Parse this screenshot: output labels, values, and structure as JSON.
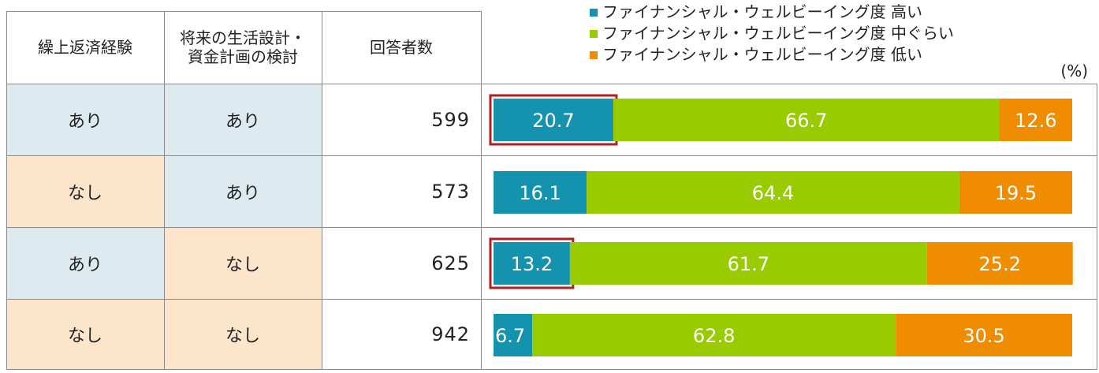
{
  "table": {
    "headers": {
      "col1": "繰上返済経験",
      "col2_line1": "将来の生活設計・",
      "col2_line2": "資金計画の検討",
      "col3": "回答者数"
    },
    "rows": [
      {
        "repayment": "あり",
        "planning": "あり",
        "respondents": "599"
      },
      {
        "repayment": "なし",
        "planning": "あり",
        "respondents": "573"
      },
      {
        "repayment": "あり",
        "planning": "なし",
        "respondents": "625"
      },
      {
        "repayment": "なし",
        "planning": "なし",
        "respondents": "942"
      }
    ]
  },
  "colors": {
    "high": "#1592ad",
    "mid": "#99cc00",
    "low": "#f08c00",
    "yes_bg": "#ddeaf0",
    "no_bg": "#fde5cc",
    "highlight": "#b01e23"
  },
  "chart_data": {
    "type": "bar",
    "orientation": "horizontal-stacked-100",
    "unit": "(%)",
    "xlim": [
      0,
      100
    ],
    "categories": [
      "あり / あり",
      "なし / あり",
      "あり / なし",
      "なし / なし"
    ],
    "series": [
      {
        "name": "ファイナンシャル・ウェルビーイング度 高い",
        "values": [
          20.7,
          16.1,
          13.2,
          6.7
        ]
      },
      {
        "name": "ファイナンシャル・ウェルビーイング度 中ぐらい",
        "values": [
          66.7,
          64.4,
          61.7,
          62.8
        ]
      },
      {
        "name": "ファイナンシャル・ウェルビーイング度 低い",
        "values": [
          12.6,
          19.5,
          25.2,
          30.5
        ]
      }
    ],
    "highlighted": [
      {
        "row": 0,
        "series": 0
      },
      {
        "row": 2,
        "series": 0
      }
    ],
    "legend_position": "top"
  }
}
